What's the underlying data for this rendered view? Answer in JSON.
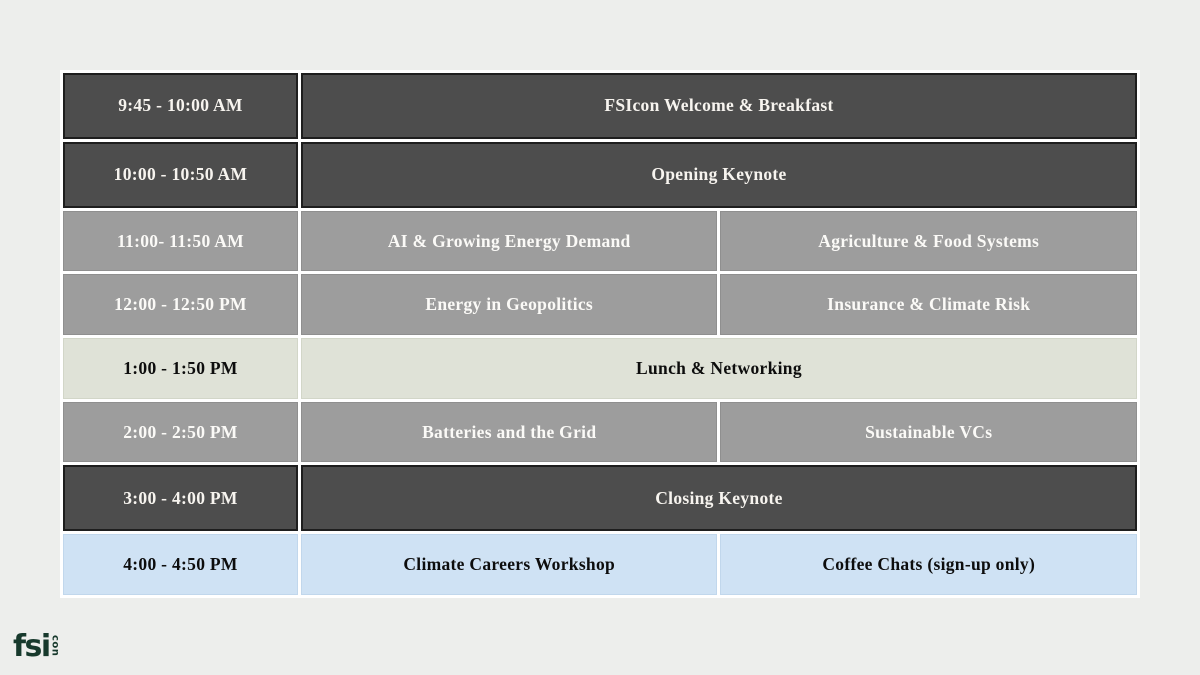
{
  "page": {
    "background_color": "#edeeec"
  },
  "schedule": {
    "rows": [
      {
        "theme": "dark",
        "time": "9:45 - 10:00 AM",
        "cells": [
          {
            "label": "FSIcon Welcome & Breakfast"
          }
        ]
      },
      {
        "theme": "dark",
        "time": "10:00 - 10:50 AM",
        "cells": [
          {
            "label": "Opening Keynote"
          }
        ]
      },
      {
        "theme": "gray",
        "time": "11:00- 11:50 AM",
        "cells": [
          {
            "label": "AI & Growing Energy Demand"
          },
          {
            "label": "Agriculture & Food Systems"
          }
        ]
      },
      {
        "theme": "gray",
        "time": "12:00 - 12:50 PM",
        "cells": [
          {
            "label": "Energy in Geopolitics"
          },
          {
            "label": "Insurance & Climate Risk"
          }
        ]
      },
      {
        "theme": "sage",
        "time": "1:00 - 1:50 PM",
        "cells": [
          {
            "label": "Lunch & Networking"
          }
        ]
      },
      {
        "theme": "gray",
        "time": "2:00 - 2:50 PM",
        "cells": [
          {
            "label": "Batteries and the Grid"
          },
          {
            "label": "Sustainable VCs"
          }
        ]
      },
      {
        "theme": "dark",
        "time": "3:00 - 4:00 PM",
        "cells": [
          {
            "label": "Closing Keynote"
          }
        ]
      },
      {
        "theme": "blue",
        "time": "4:00 - 4:50 PM",
        "cells": [
          {
            "label": "Climate Careers Workshop"
          },
          {
            "label": "Coffee Chats (sign-up only)"
          }
        ]
      }
    ],
    "colors": {
      "dark_row": "#4d4d4d",
      "gray_row": "#9d9d9d",
      "lunch_row": "#dfe2d7",
      "workshop_row": "#cfe2f4",
      "dark_row_border": "#1e1e1e",
      "light_text": "#f7f4ef",
      "dark_text": "#0d0d0d"
    }
  },
  "logo": {
    "text_main": "fsi",
    "text_vertical": "con",
    "color": "#17392c"
  }
}
